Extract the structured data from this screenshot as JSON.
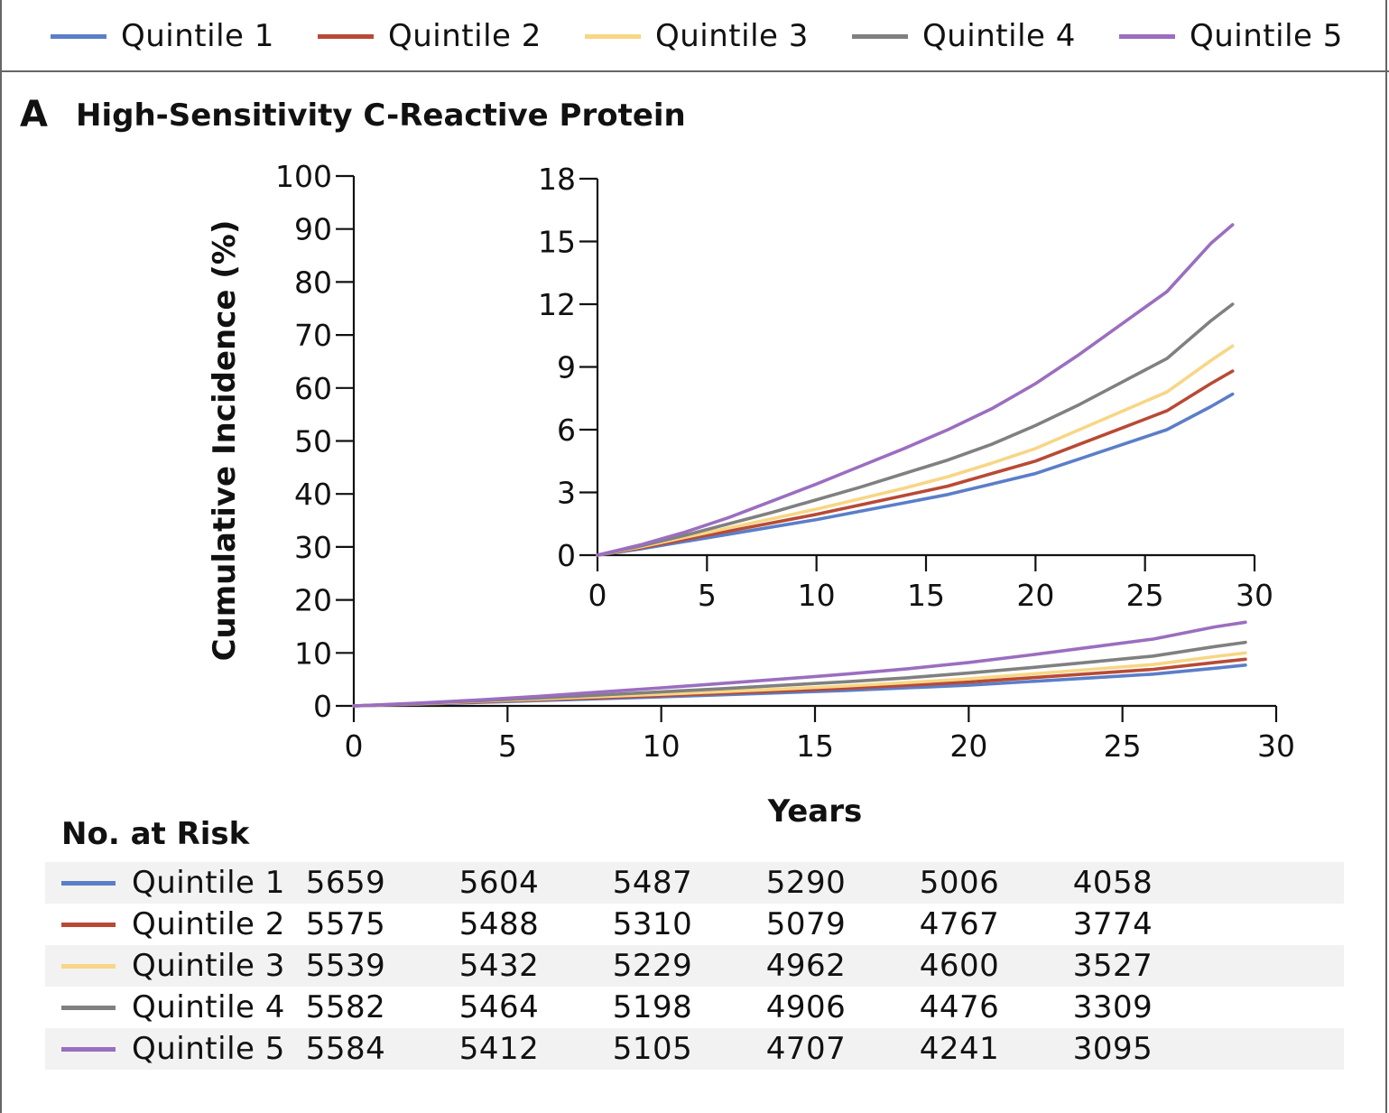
{
  "colors": {
    "q1": "#5b7ec9",
    "q2": "#b84a35",
    "q3": "#f7d685",
    "q4": "#808080",
    "q5": "#9b6ec0",
    "axis": "#111111",
    "row_shade": "#f2f2f2"
  },
  "legend": {
    "items": [
      {
        "label": "Quintile 1",
        "color": "#5b7ec9"
      },
      {
        "label": "Quintile 2",
        "color": "#b84a35"
      },
      {
        "label": "Quintile 3",
        "color": "#f7d685"
      },
      {
        "label": "Quintile 4",
        "color": "#808080"
      },
      {
        "label": "Quintile 5",
        "color": "#9b6ec0"
      }
    ]
  },
  "panel": {
    "letter": "A",
    "title": "High-Sensitivity C-Reactive Protein"
  },
  "chart_data": {
    "type": "line",
    "ylabel": "Cumulative Incidence (%)",
    "xlabel": "Years",
    "xlim": [
      0,
      30
    ],
    "ylim": [
      0,
      100
    ],
    "x_ticks": [
      "0",
      "5",
      "10",
      "15",
      "20",
      "25",
      "30"
    ],
    "y_ticks": [
      "0",
      "10",
      "20",
      "30",
      "40",
      "50",
      "60",
      "70",
      "80",
      "90",
      "100"
    ],
    "x": [
      0,
      2,
      4,
      6,
      8,
      10,
      12,
      14,
      16,
      18,
      20,
      22,
      24,
      26,
      28,
      29
    ],
    "series": [
      {
        "name": "Quintile 1",
        "values": [
          0,
          0.3,
          0.65,
          1.0,
          1.35,
          1.7,
          2.1,
          2.5,
          2.9,
          3.4,
          3.9,
          4.6,
          5.3,
          6.0,
          7.1,
          7.7
        ]
      },
      {
        "name": "Quintile 2",
        "values": [
          0,
          0.35,
          0.75,
          1.15,
          1.55,
          1.95,
          2.4,
          2.85,
          3.3,
          3.9,
          4.5,
          5.3,
          6.1,
          6.9,
          8.2,
          8.8
        ]
      },
      {
        "name": "Quintile 3",
        "values": [
          0,
          0.4,
          0.85,
          1.3,
          1.75,
          2.2,
          2.7,
          3.2,
          3.75,
          4.4,
          5.1,
          6.0,
          6.9,
          7.8,
          9.3,
          10.0
        ]
      },
      {
        "name": "Quintile 4",
        "values": [
          0,
          0.45,
          0.95,
          1.5,
          2.05,
          2.65,
          3.25,
          3.9,
          4.55,
          5.3,
          6.2,
          7.2,
          8.3,
          9.4,
          11.2,
          12.0
        ]
      },
      {
        "name": "Quintile 5",
        "values": [
          0,
          0.5,
          1.1,
          1.8,
          2.6,
          3.4,
          4.25,
          5.1,
          6.0,
          7.0,
          8.2,
          9.6,
          11.1,
          12.6,
          14.9,
          15.8
        ]
      }
    ],
    "inset": {
      "xlim": [
        0,
        30
      ],
      "ylim": [
        0,
        18
      ],
      "x_ticks": [
        "0",
        "5",
        "10",
        "15",
        "20",
        "25",
        "30"
      ],
      "y_ticks": [
        "0",
        "3",
        "6",
        "9",
        "12",
        "15",
        "18"
      ]
    }
  },
  "risk_table": {
    "heading": "No. at Risk",
    "rows": [
      {
        "label": "Quintile 1",
        "color": "#5b7ec9",
        "values": [
          "5659",
          "5604",
          "5487",
          "5290",
          "5006",
          "4058"
        ]
      },
      {
        "label": "Quintile 2",
        "color": "#b84a35",
        "values": [
          "5575",
          "5488",
          "5310",
          "5079",
          "4767",
          "3774"
        ]
      },
      {
        "label": "Quintile 3",
        "color": "#f7d685",
        "values": [
          "5539",
          "5432",
          "5229",
          "4962",
          "4600",
          "3527"
        ]
      },
      {
        "label": "Quintile 4",
        "color": "#808080",
        "values": [
          "5582",
          "5464",
          "5198",
          "4906",
          "4476",
          "3309"
        ]
      },
      {
        "label": "Quintile 5",
        "color": "#9b6ec0",
        "values": [
          "5584",
          "5412",
          "5105",
          "4707",
          "4241",
          "3095"
        ]
      }
    ]
  }
}
